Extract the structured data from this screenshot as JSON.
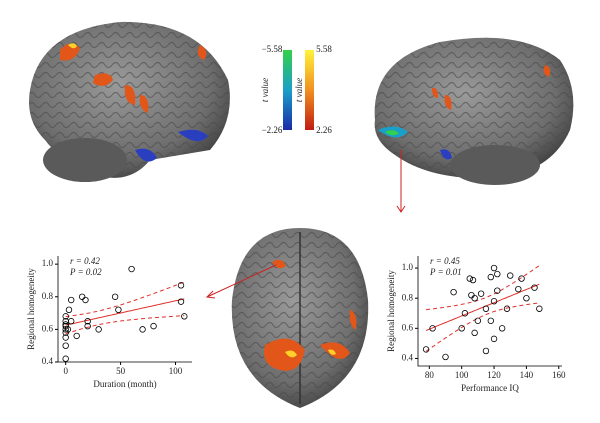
{
  "colorbar": {
    "label": "t value",
    "neg_max": "−5.58",
    "neg_min": "−2.26",
    "pos_max": "5.58",
    "pos_min": "2.26"
  },
  "chart_data": [
    {
      "type": "scatter",
      "x_label": "Duration (month)",
      "y_label": "Regional homogeneity",
      "annotations": [
        "r = 0.42",
        "P = 0.02"
      ],
      "color": "#000000",
      "fit_color": "#e0302a",
      "x": [
        0,
        0,
        0,
        0,
        0,
        0,
        0,
        0,
        0,
        2,
        3,
        5,
        5,
        10,
        15,
        18,
        20,
        20,
        30,
        45,
        48,
        60,
        70,
        80,
        105,
        105,
        108
      ],
      "values": [
        0.42,
        0.5,
        0.55,
        0.58,
        0.6,
        0.62,
        0.63,
        0.65,
        0.68,
        0.6,
        0.72,
        0.78,
        0.65,
        0.56,
        0.8,
        0.78,
        0.62,
        0.65,
        0.6,
        0.8,
        0.72,
        0.97,
        0.6,
        0.62,
        0.87,
        0.77,
        0.68
      ],
      "xlim": [
        -7,
        115
      ],
      "xticks": [
        0,
        50,
        100
      ],
      "ylim": [
        0.4,
        1.05
      ],
      "yticks": [
        0.4,
        0.6,
        0.8,
        {
          "value": 1,
          "label": "1.0"
        }
      ]
    },
    {
      "type": "scatter",
      "x_label": "Performance IQ",
      "y_label": "Regional homogeneity",
      "annotations": [
        "r = 0.45",
        "P = 0.01"
      ],
      "color": "#000000",
      "fit_color": "#e0302a",
      "x": [
        78,
        82,
        90,
        95,
        100,
        102,
        105,
        106,
        107,
        108,
        108,
        110,
        112,
        115,
        115,
        118,
        118,
        120,
        120,
        122,
        122,
        125,
        128,
        130,
        135,
        137,
        140,
        145,
        148,
        120
      ],
      "values": [
        0.46,
        0.6,
        0.41,
        0.84,
        0.6,
        0.7,
        0.93,
        0.82,
        0.92,
        0.8,
        0.57,
        0.65,
        0.83,
        0.73,
        0.45,
        0.65,
        0.94,
        0.78,
        0.53,
        0.96,
        0.85,
        0.6,
        0.73,
        0.95,
        0.86,
        0.93,
        0.8,
        0.87,
        0.73,
        1.0
      ],
      "xlim": [
        73,
        162
      ],
      "xticks": [
        80,
        100,
        120,
        140,
        160
      ],
      "ylim": [
        0.35,
        1.08
      ],
      "yticks": [
        0.4,
        0.6,
        0.8,
        {
          "value": 1,
          "label": "1.0"
        }
      ]
    }
  ]
}
